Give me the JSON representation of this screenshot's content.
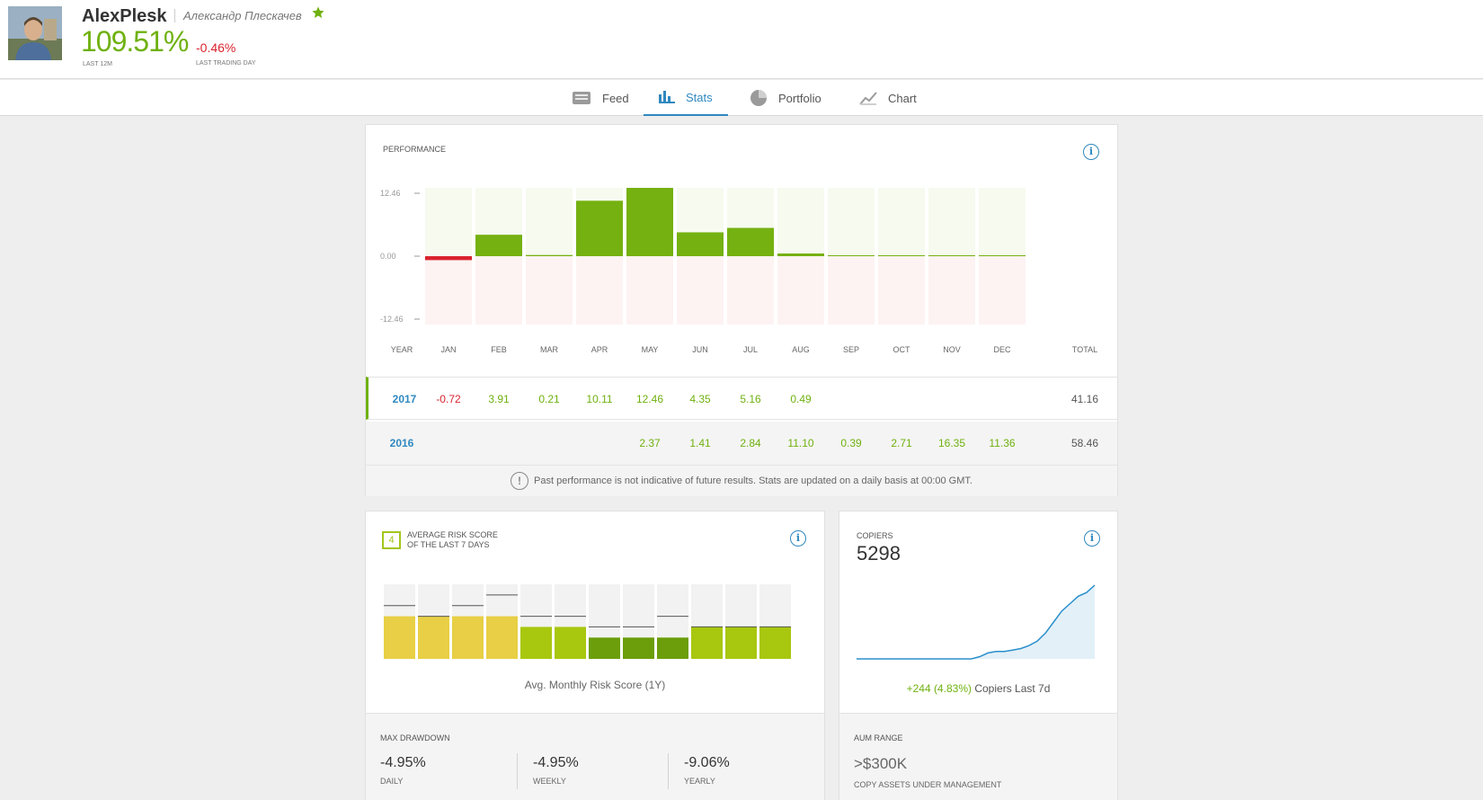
{
  "profile": {
    "username": "AlexPlesk",
    "real_name": "Александр Плескачев",
    "gain": "109.51%",
    "gain_label": "LAST 12M",
    "daily_change": "-0.46%",
    "daily_label": "LAST TRADING DAY",
    "star_color": "#6fb10f"
  },
  "tabs": [
    {
      "label": "Feed",
      "icon": "feed-icon"
    },
    {
      "label": "Stats",
      "icon": "stats-icon",
      "active": true
    },
    {
      "label": "Portfolio",
      "icon": "pie-icon"
    },
    {
      "label": "Chart",
      "icon": "chart-icon"
    }
  ],
  "performance": {
    "title": "PERFORMANCE",
    "axis_ticks": [
      "12.46",
      "0.00",
      "-12.46"
    ],
    "columns": [
      "YEAR",
      "JAN",
      "FEB",
      "MAR",
      "APR",
      "MAY",
      "JUN",
      "JUL",
      "AUG",
      "SEP",
      "OCT",
      "NOV",
      "DEC",
      "TOTAL"
    ],
    "rows": [
      {
        "year": "2017",
        "months": [
          "-0.72",
          "3.91",
          "0.21",
          "10.11",
          "12.46",
          "4.35",
          "5.16",
          "0.49",
          "",
          "",
          "",
          ""
        ],
        "total": "41.16"
      },
      {
        "year": "2016",
        "months": [
          "",
          "",
          "",
          "",
          "2.37",
          "1.41",
          "2.84",
          "11.10",
          "0.39",
          "2.71",
          "16.35",
          "11.36"
        ],
        "total": "58.46"
      }
    ],
    "note": "Past performance is not indicative of future results. Stats are updated on a daily basis at 00:00 GMT."
  },
  "chart_data": {
    "type": "bar",
    "categories": [
      "JAN",
      "FEB",
      "MAR",
      "APR",
      "MAY",
      "JUN",
      "JUL",
      "AUG",
      "SEP",
      "OCT",
      "NOV",
      "DEC"
    ],
    "values": [
      -0.72,
      3.91,
      0.21,
      10.11,
      12.46,
      4.35,
      5.16,
      0.49,
      0,
      0,
      0,
      0
    ],
    "ylim": [
      -12.46,
      12.46
    ],
    "colors": {
      "positive": "#75b111",
      "negative": "#d9232e"
    }
  },
  "risk": {
    "score": "4",
    "title_line1": "AVERAGE RISK SCORE",
    "title_line2": "OF THE LAST 7 DAYS",
    "caption": "Avg. Monthly Risk Score (1Y)",
    "monthly": [
      {
        "avg": 4,
        "max": 5,
        "color": "#e8cf45"
      },
      {
        "avg": 4,
        "max": 4,
        "color": "#e8cf45"
      },
      {
        "avg": 4,
        "max": 5,
        "color": "#e8cf45"
      },
      {
        "avg": 4,
        "max": 6,
        "color": "#e8cf45"
      },
      {
        "avg": 3,
        "max": 4,
        "color": "#a8c70f"
      },
      {
        "avg": 3,
        "max": 4,
        "color": "#a8c70f"
      },
      {
        "avg": 2,
        "max": 3,
        "color": "#6b9e0a"
      },
      {
        "avg": 2,
        "max": 3,
        "color": "#6b9e0a"
      },
      {
        "avg": 2,
        "max": 4,
        "color": "#6b9e0a"
      },
      {
        "avg": 3,
        "max": 3,
        "color": "#a8c70f"
      },
      {
        "avg": 3,
        "max": 3,
        "color": "#a8c70f"
      },
      {
        "avg": 3,
        "max": 3,
        "color": "#a8c70f"
      }
    ]
  },
  "drawdown": {
    "title": "MAX DRAWDOWN",
    "items": [
      {
        "value": "-4.95%",
        "label": "DAILY"
      },
      {
        "value": "-4.95%",
        "label": "WEEKLY"
      },
      {
        "value": "-9.06%",
        "label": "YEARLY"
      }
    ]
  },
  "copiers": {
    "title": "COPIERS",
    "count": "5298",
    "change": "+244 (4.83%)",
    "change_suffix": "Copiers Last 7d",
    "trend": [
      0,
      0,
      0,
      0,
      0,
      0,
      0,
      0,
      0,
      0,
      0,
      0,
      0,
      0,
      0,
      0.3,
      0.8,
      1,
      1,
      1.2,
      1.4,
      1.8,
      2.4,
      3.5,
      5,
      6.5,
      7.5,
      8.5,
      9,
      10
    ]
  },
  "aum": {
    "title": "AUM RANGE",
    "value": ">$300K",
    "label": "COPY ASSETS UNDER MANAGEMENT"
  }
}
